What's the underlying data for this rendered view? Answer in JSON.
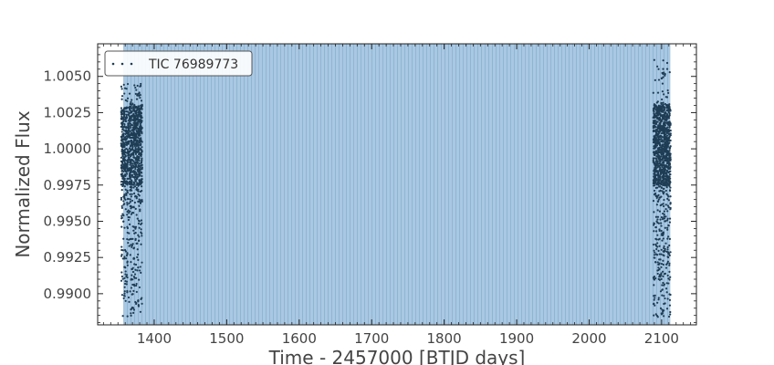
{
  "chart_data": {
    "type": "scatter",
    "xlabel": "Time - 2457000 [BTJD days]",
    "ylabel": "Normalized Flux",
    "xlim": [
      1322,
      2148
    ],
    "ylim": [
      0.98785,
      1.00725
    ],
    "x_ticks": [
      1400,
      1500,
      1600,
      1700,
      1800,
      1900,
      2000,
      2100
    ],
    "y_ticks": [
      0.99,
      0.9925,
      0.995,
      0.9975,
      1.0,
      1.0025,
      1.005
    ],
    "x_tick_labels": [
      "1400",
      "1500",
      "1600",
      "1700",
      "1800",
      "1900",
      "2000",
      "2100"
    ],
    "y_tick_labels": [
      "0.9900",
      "0.9925",
      "0.9950",
      "0.9975",
      "1.0000",
      "1.0025",
      "1.0050"
    ],
    "grid": false,
    "legend": {
      "position": "top-left",
      "entries": [
        "TIC 76989773"
      ]
    },
    "series": [
      {
        "name": "TIC 76989773",
        "marker": "dot",
        "color": "#1f3d55",
        "segments": [
          {
            "x_range": [
              1354.5,
              1383.5
            ],
            "core_y_range": [
              0.9975,
              1.003
            ],
            "min_y": 0.9884,
            "max_y": 1.0045
          },
          {
            "x_range": [
              2088.5,
              2112.5
            ],
            "core_y_range": [
              0.9975,
              1.003
            ],
            "min_y": 0.9884,
            "max_y": 1.0063
          }
        ]
      }
    ],
    "shaded_band": {
      "x_range": [
        1358,
        2112
      ],
      "fill_color": "#a9c8e2",
      "line_color": "#7fa9cc"
    }
  }
}
